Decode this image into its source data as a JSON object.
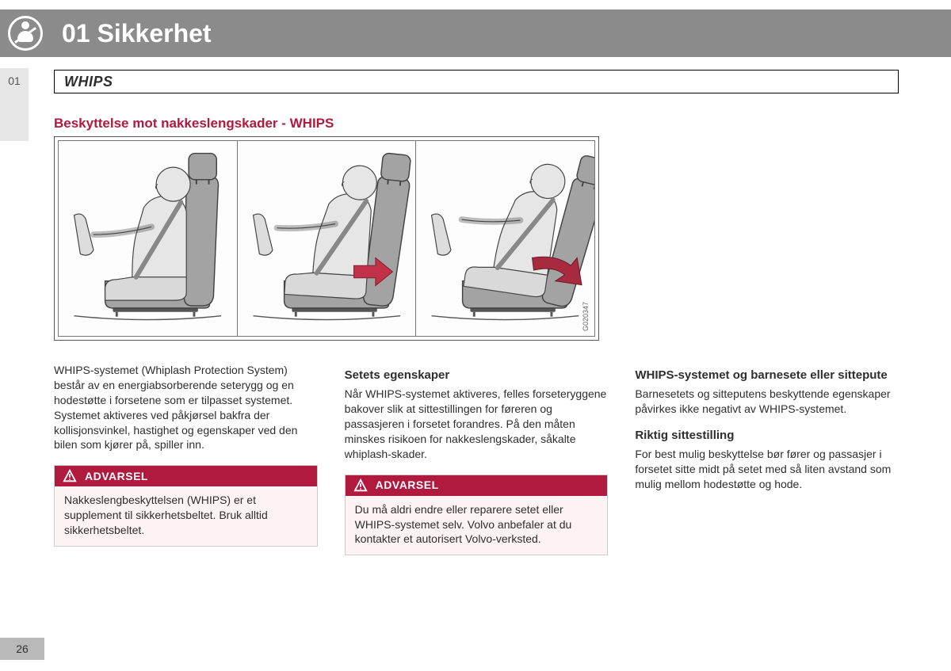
{
  "chapter": {
    "badge": "01",
    "title": "01 Sikkerhet"
  },
  "section": {
    "heading": "WHIPS"
  },
  "subtitle": "Beskyttelse mot nakkeslengskader - WHIPS",
  "figure": {
    "code": "G020347",
    "panels": 3,
    "seat_fill": "#a3a3a3",
    "seat_fill_light": "#d9d9d9",
    "person_fill": "#e6e6e6",
    "stroke": "#444444",
    "arrow_fill": "#c13249",
    "arrow_fill_dark": "#a72a3f"
  },
  "col1": {
    "intro": "WHIPS-systemet (Whiplash Protection System) består av en energiabsorberende seterygg og en hodestøtte i forsetene som er tilpasset systemet. Systemet aktiveres ved påkjørsel bakfra der kollisjonsvinkel, hastighet og egenskaper ved den bilen som kjører på, spiller inn.",
    "warning": {
      "label": "ADVARSEL",
      "text": "Nakkeslengbeskyttelsen (WHIPS) er et supplement til sikkerhetsbeltet. Bruk alltid sikkerhetsbeltet."
    }
  },
  "col2": {
    "h1": "Setets egenskaper",
    "p1": "Når WHIPS-systemet aktiveres, felles forseteryggene bakover slik at sittestillingen for føreren og passasjeren i forsetet forandres. På den måten minskes risikoen for nakkeslengskader, såkalte whiplash-skader.",
    "warning": {
      "label": "ADVARSEL",
      "text": "Du må aldri endre eller reparere setet eller WHIPS-systemet selv. Volvo anbefaler at du kontakter et autorisert Volvo-verksted."
    }
  },
  "col3": {
    "h1": "WHIPS-systemet og barnesete eller sittepute",
    "p1": "Barnesetets og sitteputens beskyttende egenskaper påvirkes ikke negativt av WHIPS-systemet.",
    "h2": "Riktig sittestilling",
    "p2": "For best mulig beskyttelse bør fører og passasjer i forsetet sitte midt på setet med så liten avstand som mulig mellom hodestøtte og hode."
  },
  "page_number": "26",
  "colors": {
    "banner_bg": "#8b8b8b",
    "accent": "#b11a3f",
    "warning_bg": "#fdf3f4",
    "tab_bg": "#e6e6e6",
    "pagenum_bg": "#b9b9b9"
  }
}
